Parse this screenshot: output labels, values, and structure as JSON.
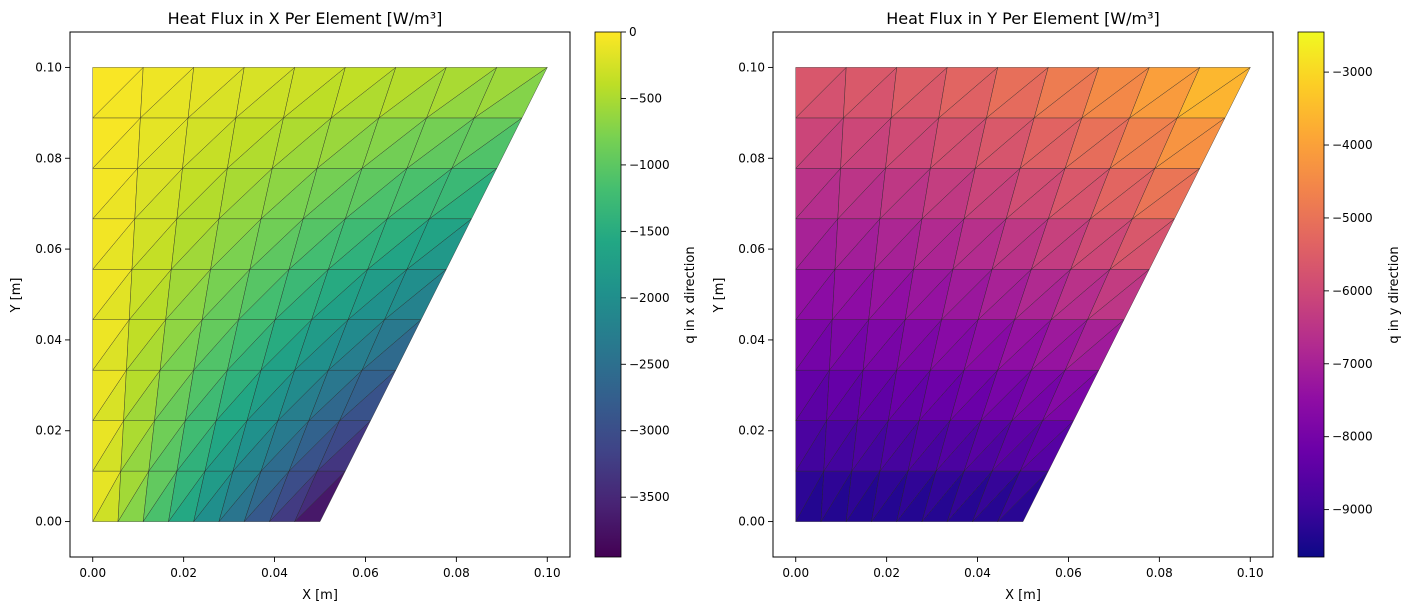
{
  "chart_data": [
    {
      "type": "heatmap",
      "title": "Heat Flux in X Per Element [W/m³]",
      "xlabel": "X [m]",
      "ylabel": "Y [m]",
      "xlim": [
        -0.005,
        0.105
      ],
      "ylim": [
        -0.0078,
        0.1078
      ],
      "xticks": [
        0.0,
        0.02,
        0.04,
        0.06,
        0.08,
        0.1
      ],
      "xtick_labels": [
        "0.00",
        "0.02",
        "0.04",
        "0.06",
        "0.08",
        "0.10"
      ],
      "yticks": [
        0.0,
        0.02,
        0.04,
        0.06,
        0.08,
        0.1
      ],
      "ytick_labels": [
        "0.00",
        "0.02",
        "0.04",
        "0.06",
        "0.08",
        "0.10"
      ],
      "mesh": {
        "rows": 9,
        "cols": 9,
        "x_bottom": [
          0.0,
          0.05
        ],
        "x_top": [
          0.0,
          0.1
        ],
        "y_range": [
          0.0,
          0.1
        ]
      },
      "field": "q_x",
      "colormap": "viridis",
      "colorbar": {
        "label": "q in x direction",
        "range": [
          -3950,
          0
        ],
        "ticks": [
          0,
          -500,
          -1000,
          -1500,
          -2000,
          -2500,
          -3000,
          -3500
        ],
        "tick_labels": [
          "0",
          "−500",
          "−1000",
          "−1500",
          "−2000",
          "−2500",
          "−3000",
          "−3500"
        ]
      }
    },
    {
      "type": "heatmap",
      "title": "Heat Flux in Y Per Element [W/m³]",
      "xlabel": "X [m]",
      "ylabel": "Y [m]",
      "xlim": [
        -0.005,
        0.105
      ],
      "ylim": [
        -0.0078,
        0.1078
      ],
      "xticks": [
        0.0,
        0.02,
        0.04,
        0.06,
        0.08,
        0.1
      ],
      "xtick_labels": [
        "0.00",
        "0.02",
        "0.04",
        "0.06",
        "0.08",
        "0.10"
      ],
      "yticks": [
        0.0,
        0.02,
        0.04,
        0.06,
        0.08,
        0.1
      ],
      "ytick_labels": [
        "0.00",
        "0.02",
        "0.04",
        "0.06",
        "0.08",
        "0.10"
      ],
      "mesh": {
        "rows": 9,
        "cols": 9,
        "x_bottom": [
          0.0,
          0.05
        ],
        "x_top": [
          0.0,
          0.1
        ],
        "y_range": [
          0.0,
          0.1
        ]
      },
      "field": "q_y",
      "colormap": "plasma",
      "colorbar": {
        "label": "q in y direction",
        "range": [
          -9650,
          -2450
        ],
        "ticks": [
          -3000,
          -4000,
          -5000,
          -6000,
          -7000,
          -8000,
          -9000
        ],
        "tick_labels": [
          "−3000",
          "−4000",
          "−5000",
          "−6000",
          "−7000",
          "−8000",
          "−9000"
        ]
      }
    }
  ]
}
